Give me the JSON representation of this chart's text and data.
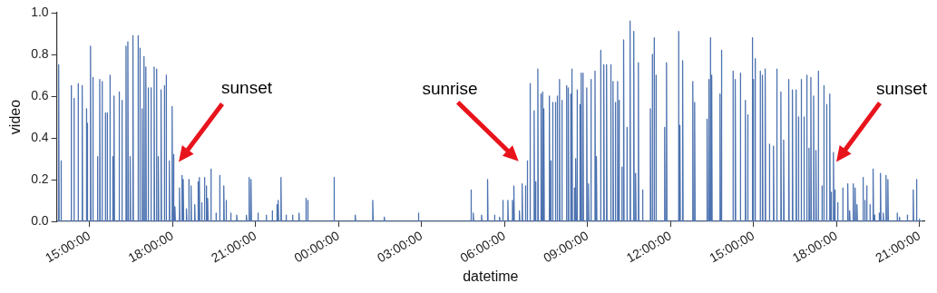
{
  "chart_data": {
    "type": "line",
    "xlabel": "datetime",
    "ylabel": "video",
    "color": "#4c72b0",
    "xlim": [
      "--01-01T13:49",
      "--01-02T21:10"
    ],
    "ylim": [
      0,
      1
    ],
    "xticks": [
      {
        "value": "--01-01T15:00",
        "label": "15:00:00"
      },
      {
        "value": "--01-01T18:00",
        "label": "18:00:00"
      },
      {
        "value": "--01-01T21:00",
        "label": "21:00:00"
      },
      {
        "value": "--01-02T00:00",
        "label": "00:00:00"
      },
      {
        "value": "--01-02T03:00",
        "label": "03:00:00"
      },
      {
        "value": "--01-02T06:00",
        "label": "06:00:00"
      },
      {
        "value": "--01-02T09:00",
        "label": "09:00:00"
      },
      {
        "value": "--01-02T12:00",
        "label": "12:00:00"
      },
      {
        "value": "--01-02T15:00",
        "label": "15:00:00"
      },
      {
        "value": "--01-02T18:00",
        "label": "18:00:00"
      },
      {
        "value": "--01-02T21:00",
        "label": "21:00:00"
      }
    ],
    "yticks": [
      {
        "value": 0,
        "label": "0.0"
      },
      {
        "value": 0.2,
        "label": "0.2"
      },
      {
        "value": 0.4,
        "label": "0.4"
      },
      {
        "value": 0.6,
        "label": "0.6"
      },
      {
        "value": 0.8,
        "label": "0.8"
      },
      {
        "value": 1,
        "label": "1.0"
      }
    ],
    "annotations": [
      "sunset",
      "sunrise",
      "sunset"
    ],
    "x": [
      "--01-01T13:49",
      "--01-01T13:53",
      "--01-01T13:53",
      "--01-01T13:54",
      "--01-01T13:58",
      "--01-01T13:58",
      "--01-01T13:59",
      "--01-01T14:20",
      "--01-01T14:20",
      "--01-01T14:21",
      "--01-01T14:26",
      "--01-01T14:26",
      "--01-01T14:27",
      "--01-01T14:35",
      "--01-01T14:35",
      "--01-01T14:36",
      "--01-01T14:44",
      "--01-01T14:44",
      "--01-01T14:45",
      "--01-01T14:53",
      "--01-01T14:53",
      "--01-01T14:54",
      "--01-01T14:55",
      "--01-01T14:55",
      "--01-01T14:56",
      "--01-01T15:02",
      "--01-01T15:02",
      "--01-01T15:03",
      "--01-01T15:07",
      "--01-01T15:07",
      "--01-01T15:08",
      "--01-01T15:17",
      "--01-01T15:17",
      "--01-01T15:18",
      "--01-01T15:22",
      "--01-01T15:22",
      "--01-01T15:23",
      "--01-01T15:27",
      "--01-01T15:27",
      "--01-01T15:28",
      "--01-01T15:34",
      "--01-01T15:34",
      "--01-01T15:35",
      "--01-01T15:38",
      "--01-01T15:38",
      "--01-01T15:39",
      "--01-01T15:44",
      "--01-01T15:44",
      "--01-01T15:45",
      "--01-01T15:50",
      "--01-01T15:50",
      "--01-01T15:51",
      "--01-01T15:53",
      "--01-01T15:53",
      "--01-01T15:54",
      "--01-01T16:04",
      "--01-01T16:04",
      "--01-01T16:05",
      "--01-01T16:10",
      "--01-01T16:10",
      "--01-01T16:11",
      "--01-01T16:19",
      "--01-01T16:19",
      "--01-01T16:20",
      "--01-01T16:23",
      "--01-01T16:23",
      "--01-01T16:24",
      "--01-01T16:28",
      "--01-01T16:28",
      "--01-01T16:29",
      "--01-01T16:34",
      "--01-01T16:34",
      "--01-01T16:35",
      "--01-01T16:45",
      "--01-01T16:45",
      "--01-01T16:46",
      "--01-01T16:49",
      "--01-01T16:49",
      "--01-01T16:50",
      "--01-01T16:54",
      "--01-01T16:54",
      "--01-01T16:55",
      "--01-01T16:58",
      "--01-01T16:58",
      "--01-01T16:59",
      "--01-01T17:02",
      "--01-01T17:02",
      "--01-01T17:03",
      "--01-01T17:07",
      "--01-01T17:07",
      "--01-01T17:08",
      "--01-01T17:13",
      "--01-01T17:13",
      "--01-01T17:14",
      "--01-01T17:20",
      "--01-01T17:20",
      "--01-01T17:21",
      "--01-01T17:25",
      "--01-01T17:25",
      "--01-01T17:26",
      "--01-01T17:29",
      "--01-01T17:29",
      "--01-01T17:30",
      "--01-01T17:35",
      "--01-01T17:35",
      "--01-01T17:36",
      "--01-01T17:42",
      "--01-01T17:42",
      "--01-01T17:43",
      "--01-01T17:46",
      "--01-01T17:46",
      "--01-01T17:47",
      "--01-01T17:53",
      "--01-01T17:53",
      "--01-01T17:54",
      "--01-01T17:59",
      "--01-01T17:59",
      "--01-01T18:00",
      "--01-01T18:02",
      "--01-01T18:02",
      "--01-01T18:03",
      "--01-01T18:05",
      "--01-01T18:05",
      "--01-01T18:06",
      "--01-01T18:15",
      "--01-01T18:15",
      "--01-01T18:16",
      "--01-01T18:20",
      "--01-01T18:20",
      "--01-01T18:21",
      "--01-01T18:23",
      "--01-01T18:23",
      "--01-01T18:24",
      "--01-01T18:30",
      "--01-01T18:30",
      "--01-01T18:31",
      "--01-01T18:35",
      "--01-01T18:35",
      "--01-01T18:36",
      "--01-01T18:40",
      "--01-01T18:40",
      "--01-01T18:41",
      "--01-01T18:48",
      "--01-01T18:48",
      "--01-01T18:49",
      "--01-01T18:55",
      "--01-01T18:55",
      "--01-01T18:56",
      "--01-01T18:58",
      "--01-01T18:58",
      "--01-01T18:59",
      "--01-01T19:03",
      "--01-01T19:03",
      "--01-01T19:04",
      "--01-01T19:09",
      "--01-01T19:09",
      "--01-01T19:10",
      "--01-01T19:13",
      "--01-01T19:13",
      "--01-01T19:14",
      "--01-01T19:16",
      "--01-01T19:16",
      "--01-01T19:17",
      "--01-01T19:23",
      "--01-01T19:23",
      "--01-01T19:24",
      "--01-01T19:34",
      "--01-01T19:34",
      "--01-01T19:35",
      "--01-01T19:42",
      "--01-01T19:42",
      "--01-01T19:43",
      "--01-01T19:51",
      "--01-01T19:51",
      "--01-01T19:52",
      "--01-01T19:56",
      "--01-01T19:56",
      "--01-01T19:57",
      "--01-01T20:06",
      "--01-01T20:06",
      "--01-01T20:07",
      "--01-01T20:19",
      "--01-01T20:19",
      "--01-01T20:20",
      "--01-01T20:40",
      "--01-01T20:40",
      "--01-01T20:41",
      "--01-01T20:46",
      "--01-01T20:46",
      "--01-01T20:47",
      "--01-01T20:50",
      "--01-01T20:50",
      "--01-01T20:51",
      "--01-01T21:05",
      "--01-01T21:05",
      "--01-01T21:06",
      "--01-01T21:23",
      "--01-01T21:23",
      "--01-01T21:24",
      "--01-01T21:36",
      "--01-01T21:36",
      "--01-01T21:37",
      "--01-01T21:46",
      "--01-01T21:46",
      "--01-01T21:47",
      "--01-01T21:49",
      "--01-01T21:49",
      "--01-01T21:50",
      "--01-01T21:55",
      "--01-01T21:55",
      "--01-01T21:56",
      "--01-01T22:06",
      "--01-01T22:06",
      "--01-01T22:07",
      "--01-01T22:20",
      "--01-01T22:20",
      "--01-01T22:21",
      "--01-01T22:34",
      "--01-01T22:34",
      "--01-01T22:35",
      "--01-01T22:49",
      "--01-01T22:49",
      "--01-01T22:50",
      "--01-01T22:53",
      "--01-01T22:53",
      "--01-01T22:54",
      "--01-01T23:50",
      "--01-01T23:50",
      "--01-01T23:51",
      "--01-02T00:36",
      "--01-02T00:36",
      "--01-02T00:37",
      "--01-02T01:14",
      "--01-02T01:14",
      "--01-02T01:15",
      "--01-02T01:39",
      "--01-02T01:39",
      "--01-02T01:40",
      "--01-02T02:53",
      "--01-02T02:53",
      "--01-02T02:54",
      "--01-02T04:47",
      "--01-02T04:47",
      "--01-02T04:48",
      "--01-02T04:52",
      "--01-02T04:52",
      "--01-02T04:53",
      "--01-02T05:10",
      "--01-02T05:10",
      "--01-02T05:11",
      "--01-02T05:23",
      "--01-02T05:23",
      "--01-02T05:24",
      "--01-02T05:38",
      "--01-02T05:38",
      "--01-02T05:39",
      "--01-02T05:49",
      "--01-02T05:49",
      "--01-02T05:50",
      "--01-02T05:56",
      "--01-02T05:56",
      "--01-02T05:57",
      "--01-02T06:07",
      "--01-02T06:07",
      "--01-02T06:08",
      "--01-02T06:17",
      "--01-02T06:17",
      "--01-02T06:18",
      "--01-02T06:20",
      "--01-02T06:20",
      "--01-02T06:21",
      "--01-02T06:32",
      "--01-02T06:32",
      "--01-02T06:33",
      "--01-02T06:38",
      "--01-02T06:38",
      "--01-02T06:39",
      "--01-02T06:45",
      "--01-02T06:45",
      "--01-02T06:46",
      "--01-02T06:49",
      "--01-02T06:49",
      "--01-02T06:50",
      "--01-02T06:55",
      "--01-02T06:55",
      "--01-02T06:56",
      "--01-02T07:04",
      "--01-02T07:04",
      "--01-02T07:05",
      "--01-02T07:07",
      "--01-02T07:07",
      "--01-02T07:08",
      "--01-02T07:12",
      "--01-02T07:12",
      "--01-02T07:13",
      "--01-02T07:19",
      "--01-02T07:19",
      "--01-02T07:20",
      "--01-02T07:22",
      "--01-02T07:22",
      "--01-02T07:23",
      "--01-02T07:25",
      "--01-02T07:25",
      "--01-02T07:26",
      "--01-02T07:37",
      "--01-02T07:37",
      "--01-02T07:38",
      "--01-02T07:40",
      "--01-02T07:40",
      "--01-02T07:41",
      "--01-02T07:44",
      "--01-02T07:44",
      "--01-02T07:45",
      "--01-02T07:50",
      "--01-02T07:50",
      "--01-02T07:51",
      "--01-02T07:54",
      "--01-02T07:54",
      "--01-02T07:55",
      "--01-02T07:59",
      "--01-02T07:59",
      "--01-02T08:00",
      "--01-02T08:04",
      "--01-02T08:04",
      "--01-02T08:05",
      "--01-02T08:14",
      "--01-02T08:14",
      "--01-02T08:15",
      "--01-02T08:18",
      "--01-02T08:18",
      "--01-02T08:19",
      "--01-02T08:23",
      "--01-02T08:23",
      "--01-02T08:24",
      "--01-02T08:26",
      "--01-02T08:26",
      "--01-02T08:27",
      "--01-02T08:31",
      "--01-02T08:31",
      "--01-02T08:32",
      "--01-02T08:34",
      "--01-02T08:34",
      "--01-02T08:35",
      "--01-02T08:37",
      "--01-02T08:37",
      "--01-02T08:38",
      "--01-02T08:43",
      "--01-02T08:43",
      "--01-02T08:44",
      "--01-02T08:46",
      "--01-02T08:46",
      "--01-02T08:47",
      "--01-02T08:50",
      "--01-02T08:50",
      "--01-02T08:51",
      "--01-02T08:58",
      "--01-02T08:58",
      "--01-02T08:59",
      "--01-02T09:02",
      "--01-02T09:02",
      "--01-02T09:03",
      "--01-02T09:07",
      "--01-02T09:07",
      "--01-02T09:08",
      "--01-02T09:16",
      "--01-02T09:16",
      "--01-02T09:17",
      "--01-02T09:19",
      "--01-02T09:19",
      "--01-02T09:20",
      "--01-02T09:28",
      "--01-02T09:28",
      "--01-02T09:29",
      "--01-02T09:35",
      "--01-02T09:35",
      "--01-02T09:36",
      "--01-02T09:41",
      "--01-02T09:41",
      "--01-02T09:42",
      "--01-02T09:50",
      "--01-02T09:50",
      "--01-02T09:51",
      "--01-02T09:55",
      "--01-02T09:55",
      "--01-02T09:56",
      "--01-02T10:00",
      "--01-02T10:00",
      "--01-02T10:01",
      "--01-02T10:05",
      "--01-02T10:05",
      "--01-02T10:06",
      "--01-02T10:08",
      "--01-02T10:08",
      "--01-02T10:09",
      "--01-02T10:14",
      "--01-02T10:14",
      "--01-02T10:15",
      "--01-02T10:18",
      "--01-02T10:18",
      "--01-02T10:19",
      "--01-02T10:25",
      "--01-02T10:25",
      "--01-02T10:26",
      "--01-02T10:32",
      "--01-02T10:32",
      "--01-02T10:33",
      "--01-02T10:40",
      "--01-02T10:40",
      "--01-02T10:41",
      "--01-02T10:44",
      "--01-02T10:44",
      "--01-02T10:45",
      "--01-02T10:50",
      "--01-02T10:50",
      "--01-02T10:51",
      "--01-02T10:59",
      "--01-02T10:59",
      "--01-02T11:00",
      "--01-02T11:16",
      "--01-02T11:16",
      "--01-02T11:17",
      "--01-02T11:20",
      "--01-02T11:20",
      "--01-02T11:21",
      "--01-02T11:24",
      "--01-02T11:24",
      "--01-02T11:25",
      "--01-02T11:28",
      "--01-02T11:28",
      "--01-02T11:29",
      "--01-02T11:47",
      "--01-02T11:47",
      "--01-02T11:48",
      "--01-02T11:51",
      "--01-02T11:51",
      "--01-02T11:52",
      "--01-02T12:17",
      "--01-02T12:17",
      "--01-02T12:18",
      "--01-02T12:20",
      "--01-02T12:20",
      "--01-02T12:21",
      "--01-02T12:26",
      "--01-02T12:26",
      "--01-02T12:27",
      "--01-02T12:48",
      "--01-02T12:48",
      "--01-02T12:49",
      "--01-02T12:52",
      "--01-02T12:52",
      "--01-02T12:53",
      "--01-02T13:19",
      "--01-02T13:19",
      "--01-02T13:20",
      "--01-02T13:23",
      "--01-02T13:23",
      "--01-02T13:24",
      "--01-02T13:26",
      "--01-02T13:26",
      "--01-02T13:27",
      "--01-02T13:29",
      "--01-02T13:29",
      "--01-02T13:30",
      "--01-02T13:47",
      "--01-02T13:47",
      "--01-02T13:48",
      "--01-02T13:50",
      "--01-02T13:50",
      "--01-02T13:51",
      "--01-02T14:15",
      "--01-02T14:15",
      "--01-02T14:16",
      "--01-02T14:20",
      "--01-02T14:20",
      "--01-02T14:21",
      "--01-02T14:31",
      "--01-02T14:31",
      "--01-02T14:32",
      "--01-02T14:42",
      "--01-02T14:42",
      "--01-02T14:43",
      "--01-02T14:47",
      "--01-02T14:47",
      "--01-02T14:48",
      "--01-02T14:57",
      "--01-02T14:57",
      "--01-02T14:58",
      "--01-02T14:59",
      "--01-02T14:59",
      "--01-02T15:00",
      "--01-02T15:03",
      "--01-02T15:03",
      "--01-02T15:04",
      "--01-02T15:14",
      "--01-02T15:14",
      "--01-02T15:15",
      "--01-02T15:19",
      "--01-02T15:19",
      "--01-02T15:20",
      "--01-02T15:25",
      "--01-02T15:25",
      "--01-02T15:26",
      "--01-02T15:34",
      "--01-02T15:34",
      "--01-02T15:35",
      "--01-02T15:43",
      "--01-02T15:43",
      "--01-02T15:44",
      "--01-02T15:50",
      "--01-02T15:50",
      "--01-02T15:51",
      "--01-02T15:59",
      "--01-02T15:59",
      "--01-02T16:00",
      "--01-02T16:05",
      "--01-02T16:05",
      "--01-02T16:06",
      "--01-02T16:16",
      "--01-02T16:16",
      "--01-02T16:17",
      "--01-02T16:24",
      "--01-02T16:24",
      "--01-02T16:25",
      "--01-02T16:32",
      "--01-02T16:32",
      "--01-02T16:33",
      "--01-02T16:37",
      "--01-02T16:37",
      "--01-02T16:38",
      "--01-02T16:43",
      "--01-02T16:43",
      "--01-02T16:44",
      "--01-02T16:49",
      "--01-02T16:49",
      "--01-02T16:50",
      "--01-02T16:55",
      "--01-02T16:55",
      "--01-02T16:56",
      "--01-02T17:00",
      "--01-02T17:00",
      "--01-02T17:01",
      "--01-02T17:04",
      "--01-02T17:04",
      "--01-02T17:05",
      "--01-02T17:10",
      "--01-02T17:10",
      "--01-02T17:11",
      "--01-02T17:15",
      "--01-02T17:15",
      "--01-02T17:16",
      "--01-02T17:20",
      "--01-02T17:20",
      "--01-02T17:21",
      "--01-02T17:28",
      "--01-02T17:28",
      "--01-02T17:29",
      "--01-02T17:32",
      "--01-02T17:32",
      "--01-02T17:33",
      "--01-02T17:38",
      "--01-02T17:38",
      "--01-02T17:39",
      "--01-02T17:45",
      "--01-02T17:45",
      "--01-02T17:46",
      "--01-02T17:48",
      "--01-02T17:48",
      "--01-02T17:49",
      "--01-02T17:53",
      "--01-02T17:53",
      "--01-02T17:54",
      "--01-02T17:56",
      "--01-02T17:56",
      "--01-02T17:57",
      "--01-02T18:02",
      "--01-02T18:02",
      "--01-02T18:03",
      "--01-02T18:13",
      "--01-02T18:13",
      "--01-02T18:14",
      "--01-02T18:24",
      "--01-02T18:24",
      "--01-02T18:25",
      "--01-02T18:28",
      "--01-02T18:28",
      "--01-02T18:29",
      "--01-02T18:36",
      "--01-02T18:36",
      "--01-02T18:37",
      "--01-02T18:40",
      "--01-02T18:40",
      "--01-02T18:41",
      "--01-02T18:44",
      "--01-02T18:44",
      "--01-02T18:45",
      "--01-02T18:57",
      "--01-02T18:57",
      "--01-02T18:58",
      "--01-02T19:01",
      "--01-02T19:01",
      "--01-02T19:02",
      "--01-02T19:05",
      "--01-02T19:05",
      "--01-02T19:06",
      "--01-02T19:12",
      "--01-02T19:12",
      "--01-02T19:13",
      "--01-02T19:19",
      "--01-02T19:19",
      "--01-02T19:20",
      "--01-02T19:22",
      "--01-02T19:22",
      "--01-02T19:23",
      "--01-02T19:32",
      "--01-02T19:32",
      "--01-02T19:33",
      "--01-02T19:35",
      "--01-02T19:35",
      "--01-02T19:36",
      "--01-02T19:41",
      "--01-02T19:41",
      "--01-02T19:42",
      "--01-02T19:47",
      "--01-02T19:47",
      "--01-02T19:48",
      "--01-02T19:51",
      "--01-02T19:51",
      "--01-02T19:52",
      "--01-02T20:11",
      "--01-02T20:11",
      "--01-02T20:12",
      "--01-02T20:16",
      "--01-02T20:16",
      "--01-02T20:17",
      "--01-02T20:33",
      "--01-02T20:33",
      "--01-02T20:34",
      "--01-02T20:46",
      "--01-02T20:46",
      "--01-02T20:47",
      "--01-02T20:53",
      "--01-02T20:53",
      "--01-02T20:54",
      "--01-02T20:59",
      "--01-02T20:59",
      "--01-02T21:00",
      "--01-02T21:06"
    ],
    "values": [
      0,
      0,
      0.75,
      0,
      0,
      0.29,
      0,
      0,
      0.65,
      0,
      0,
      0.59,
      0,
      0,
      0.66,
      0,
      0,
      0.65,
      0,
      0,
      0.54,
      0,
      0,
      0.47,
      0,
      0,
      0.84,
      0,
      0,
      0.69,
      0,
      0,
      0.31,
      0,
      0,
      0.68,
      0,
      0,
      0.67,
      0,
      0,
      0.52,
      0,
      0,
      0.52,
      0,
      0,
      0.7,
      0,
      0,
      0.31,
      0,
      0,
      0.6,
      0,
      0,
      0.62,
      0,
      0,
      0.58,
      0,
      0,
      0.84,
      0,
      0,
      0.86,
      0,
      0,
      0.31,
      0,
      0,
      0.89,
      0,
      0,
      0.89,
      0,
      0,
      0.83,
      0,
      0,
      0.54,
      0,
      0,
      0.79,
      0,
      0,
      0.74,
      0,
      0,
      0.64,
      0,
      0,
      0.64,
      0,
      0,
      0.74,
      0,
      0,
      0.73,
      0,
      0,
      0.31,
      0,
      0,
      0.63,
      0,
      0,
      0.65,
      0,
      0,
      0.7,
      0,
      0,
      0.29,
      0,
      0,
      0.55,
      0,
      0,
      0.32,
      0,
      0,
      0.07,
      0,
      0,
      0.16,
      0,
      0,
      0.22,
      0,
      0,
      0.2,
      0,
      0,
      0.06,
      0,
      0,
      0.2,
      0,
      0,
      0.17,
      0,
      0,
      0.08,
      0,
      0,
      0.19,
      0,
      0,
      0.21,
      0,
      0,
      0.09,
      0,
      0,
      0.21,
      0,
      0,
      0.17,
      0,
      0,
      0.11,
      0,
      0,
      0.25,
      0,
      0,
      0.04,
      0,
      0,
      0.22,
      0,
      0,
      0.17,
      0,
      0,
      0.1,
      0,
      0,
      0.04,
      0,
      0,
      0.03,
      0,
      0,
      0.03,
      0,
      0,
      0.21,
      0,
      0,
      0.2,
      0,
      0,
      0.04,
      0,
      0,
      0.03,
      0,
      0,
      0.05,
      0,
      0,
      0.08,
      0,
      0,
      0.1,
      0,
      0,
      0.21,
      0,
      0,
      0.03,
      0,
      0,
      0.03,
      0,
      0,
      0.04,
      0,
      0,
      0.11,
      0,
      0,
      0.1,
      0,
      0,
      0.21,
      0,
      0,
      0.03,
      0,
      0,
      0.1,
      0,
      0,
      0.02,
      0,
      0,
      0.04,
      0,
      0,
      0.15,
      0,
      0,
      0.04,
      0,
      0,
      0.03,
      0,
      0,
      0.2,
      0,
      0,
      0.03,
      0,
      0,
      0.02,
      0,
      0,
      0.1,
      0,
      0,
      0.1,
      0,
      0,
      0.1,
      0,
      0,
      0.17,
      0,
      0,
      0.05,
      0,
      0,
      0.18,
      0,
      0,
      0.17,
      0,
      0,
      0.29,
      0,
      0,
      0.66,
      0,
      0,
      0.53,
      0,
      0,
      0.19,
      0,
      0,
      0.73,
      0,
      0,
      0.61,
      0,
      0,
      0.62,
      0,
      0,
      0.54,
      0,
      0,
      0.6,
      0,
      0,
      0.29,
      0,
      0,
      0.57,
      0,
      0,
      0.57,
      0,
      0,
      0.6,
      0,
      0,
      0.68,
      0,
      0,
      0.58,
      0,
      0,
      0.65,
      0,
      0,
      0.64,
      0,
      0,
      0.61,
      0,
      0,
      0.73,
      0,
      0,
      0.16,
      0,
      0,
      0.3,
      0,
      0,
      0.63,
      0,
      0,
      0.56,
      0,
      0,
      0.71,
      0,
      0,
      0.71,
      0,
      0,
      0.64,
      0,
      0,
      0.18,
      0,
      0,
      0.68,
      0,
      0,
      0.72,
      0,
      0,
      0.31,
      0,
      0,
      0.82,
      0,
      0,
      0.75,
      0,
      0,
      0.75,
      0,
      0,
      0.75,
      0,
      0,
      0.67,
      0,
      0,
      0.57,
      0,
      0,
      0.67,
      0,
      0,
      0.58,
      0,
      0,
      0.26,
      0,
      0,
      0.87,
      0,
      0,
      0.45,
      0,
      0,
      0.96,
      0,
      0,
      0.91,
      0,
      0,
      0.23,
      0,
      0,
      0.76,
      0,
      0,
      0.15,
      0,
      0,
      0.54,
      0,
      0,
      0.8,
      0,
      0,
      0.88,
      0,
      0,
      0.7,
      0,
      0,
      0.45,
      0,
      0,
      0.76,
      0,
      0,
      0.91,
      0,
      0,
      0.46,
      0,
      0,
      0.77,
      0,
      0,
      0.67,
      0,
      0,
      0.57,
      0,
      0,
      0.49,
      0,
      0,
      0.68,
      0,
      0,
      0.88,
      0,
      0,
      0.7,
      0,
      0,
      0.61,
      0,
      0,
      0.82,
      0,
      0,
      0.72,
      0,
      0,
      0.68,
      0,
      0,
      0.71,
      0,
      0,
      0.58,
      0,
      0,
      0.51,
      0,
      0,
      0.88,
      0,
      0,
      0.68,
      0,
      0,
      0.78,
      0,
      0,
      0.72,
      0,
      0,
      0.7,
      0,
      0,
      0.73,
      0,
      0,
      0.37,
      0,
      0,
      0.36,
      0,
      0,
      0.73,
      0,
      0,
      0.62,
      0,
      0,
      0.39,
      0,
      0,
      0.68,
      0,
      0,
      0.63,
      0,
      0,
      0.63,
      0,
      0,
      0.5,
      0,
      0,
      0.68,
      0,
      0,
      0.5,
      0,
      0,
      0.7,
      0,
      0,
      0.35,
      0,
      0,
      0.69,
      0,
      0,
      0.6,
      0,
      0,
      0.34,
      0,
      0,
      0.72,
      0,
      0,
      0.17,
      0,
      0,
      0.65,
      0,
      0,
      0.56,
      0,
      0,
      0.61,
      0,
      0,
      0.14,
      0,
      0,
      0.33,
      0,
      0,
      0.15,
      0,
      0,
      0.09,
      0,
      0,
      0.16,
      0,
      0,
      0.18,
      0,
      0,
      0.05,
      0,
      0,
      0.18,
      0,
      0,
      0.16,
      0,
      0,
      0.08,
      0,
      0,
      0.21,
      0,
      0,
      0.1,
      0,
      0,
      0.17,
      0,
      0,
      0.08,
      0,
      0,
      0.25,
      0,
      0,
      0.03,
      0,
      0,
      0.04,
      0,
      0,
      0.23,
      0,
      0,
      0.04,
      0,
      0,
      0.22,
      0,
      0,
      0.2,
      0,
      0,
      0.04,
      0,
      0,
      0.02,
      0,
      0,
      0.03,
      0,
      0,
      0.15,
      0,
      0,
      0.2,
      0,
      0,
      0.01,
      0,
      0
    ]
  }
}
